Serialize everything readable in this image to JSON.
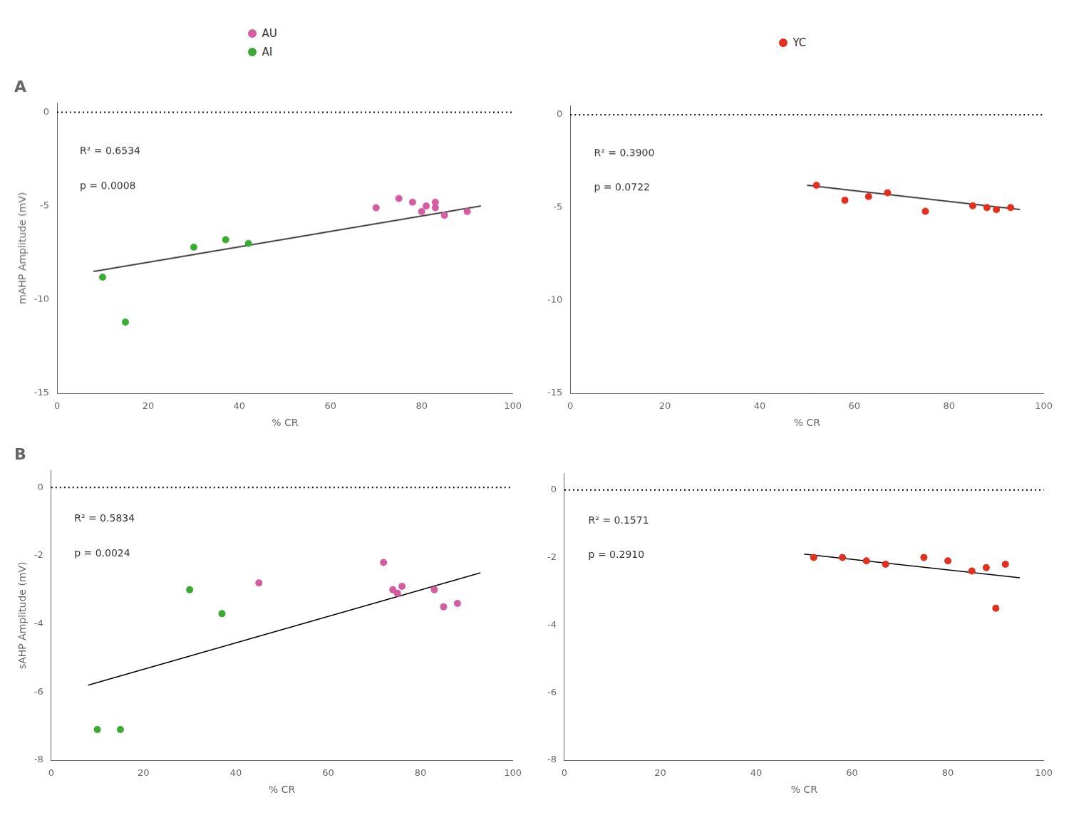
{
  "chart_data": [
    {
      "type": "scatter",
      "title": "A",
      "xlabel": "% CR",
      "ylabel": "mAHP Amplitude (mV)",
      "xlim": [
        0,
        100
      ],
      "ylim": [
        -15,
        0.5
      ],
      "xticks": [
        0,
        20,
        40,
        60,
        80,
        100
      ],
      "yticks": [
        0,
        -5,
        -10,
        -15
      ],
      "grid": false,
      "legend": "top",
      "hlines": [
        0
      ],
      "annotations": [
        "R² = 0.6534",
        "p = 0.0008"
      ],
      "series": [
        {
          "name": "AU",
          "type": "scatter",
          "color": "#d45ca0",
          "x": [
            70,
            75,
            78,
            80,
            81,
            83,
            83,
            85,
            90
          ],
          "values": [
            -5.1,
            -4.6,
            -4.8,
            -5.3,
            -5.0,
            -5.1,
            -4.8,
            -5.5,
            -5.3
          ]
        },
        {
          "name": "AI",
          "type": "scatter",
          "color": "#3aaa35",
          "x": [
            10,
            15,
            30,
            37,
            42
          ],
          "values": [
            -8.8,
            -11.2,
            -7.2,
            -6.8,
            -7.0
          ]
        },
        {
          "type": "line",
          "color": "black",
          "x": [
            8,
            93
          ],
          "values": [
            -8.5,
            -5.0
          ]
        }
      ]
    },
    {
      "type": "scatter",
      "xlabel": "% CR",
      "xlim": [
        0,
        100
      ],
      "ylim": [
        -15,
        0.5
      ],
      "xticks": [
        0,
        20,
        40,
        60,
        80,
        100
      ],
      "yticks": [
        0,
        -5,
        -10,
        -15
      ],
      "grid": false,
      "legend": "top",
      "hlines": [
        0
      ],
      "annotations": [
        "R² = 0.3900",
        "p = 0.0722"
      ],
      "series": [
        {
          "name": "YC",
          "type": "scatter",
          "color": "#e03020",
          "x": [
            52,
            58,
            63,
            67,
            75,
            85,
            88,
            90,
            93
          ],
          "values": [
            -3.8,
            -4.6,
            -4.4,
            -4.2,
            -5.2,
            -4.9,
            -5.0,
            -5.1,
            -5.0
          ]
        },
        {
          "type": "line",
          "color": "black",
          "x": [
            50,
            95
          ],
          "values": [
            -3.8,
            -5.1
          ]
        }
      ]
    },
    {
      "type": "scatter",
      "title": "B",
      "xlabel": "% CR",
      "ylabel": "sAHP Amplitude (mV)",
      "xlim": [
        0,
        100
      ],
      "ylim": [
        -8,
        0.5
      ],
      "xticks": [
        0,
        20,
        40,
        60,
        80,
        100
      ],
      "yticks": [
        0,
        -2,
        -4,
        -6,
        -8
      ],
      "grid": false,
      "hlines": [
        0
      ],
      "annotations": [
        "R² = 0.5834",
        "p = 0.0024"
      ],
      "series": [
        {
          "name": "AU",
          "type": "scatter",
          "color": "#d45ca0",
          "x": [
            45,
            72,
            74,
            75,
            76,
            83,
            85,
            88
          ],
          "values": [
            -2.8,
            -2.2,
            -3.0,
            -3.1,
            -2.9,
            -3.0,
            -3.5,
            -3.4
          ]
        },
        {
          "name": "AI",
          "type": "scatter",
          "color": "#3aaa35",
          "x": [
            10,
            15,
            30,
            37
          ],
          "values": [
            -7.1,
            -7.1,
            -3.0,
            -3.7
          ]
        },
        {
          "type": "line",
          "color": "black",
          "x": [
            8,
            93
          ],
          "values": [
            -5.8,
            -2.5
          ]
        }
      ]
    },
    {
      "type": "scatter",
      "xlabel": "% CR",
      "xlim": [
        0,
        100
      ],
      "ylim": [
        -8,
        0.5
      ],
      "xticks": [
        0,
        20,
        40,
        60,
        80,
        100
      ],
      "yticks": [
        0,
        -2,
        -4,
        -6,
        -8
      ],
      "grid": false,
      "hlines": [
        0
      ],
      "annotations": [
        "R² = 0.1571",
        "p = 0.2910"
      ],
      "series": [
        {
          "name": "YC",
          "type": "scatter",
          "color": "#e03020",
          "x": [
            52,
            58,
            63,
            67,
            75,
            80,
            85,
            88,
            90,
            92
          ],
          "values": [
            -2.0,
            -2.0,
            -2.1,
            -2.2,
            -2.0,
            -2.1,
            -2.4,
            -2.3,
            -3.5,
            -2.2
          ]
        },
        {
          "type": "line",
          "color": "black",
          "x": [
            50,
            95
          ],
          "values": [
            -1.9,
            -2.6
          ]
        }
      ]
    }
  ]
}
